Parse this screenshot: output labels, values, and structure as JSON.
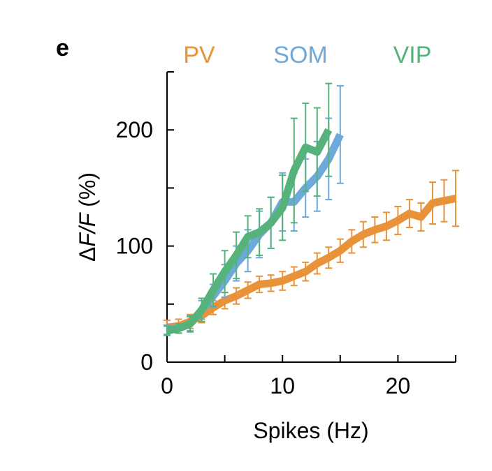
{
  "panel_label": "e",
  "chart_data": {
    "type": "line",
    "xlabel": "Spikes (Hz)",
    "ylabel_prefix": "Δ",
    "ylabel_var": "F/F",
    "ylabel_unit": " (%)",
    "xlim": [
      0,
      25
    ],
    "ylim": [
      0,
      250
    ],
    "x_ticks": [
      0,
      5,
      10,
      15,
      20,
      25
    ],
    "x_tick_labels": [
      "0",
      "",
      "10",
      "",
      "20",
      ""
    ],
    "y_ticks": [
      0,
      50,
      100,
      150,
      200,
      250
    ],
    "y_tick_labels": [
      "0",
      "",
      "100",
      "",
      "200",
      ""
    ],
    "grid": false,
    "legend_position": "top",
    "series": [
      {
        "name": "PV",
        "color": "#e8923a",
        "x": [
          0,
          1,
          2,
          3,
          4,
          5,
          6,
          7,
          8,
          9,
          10,
          11,
          12,
          13,
          14,
          15,
          16,
          17,
          18,
          19,
          20,
          21,
          22,
          23,
          24,
          25
        ],
        "y": [
          30,
          31,
          35,
          40,
          47,
          53,
          57,
          62,
          67,
          68,
          70,
          74,
          78,
          85,
          90,
          96,
          104,
          110,
          114,
          117,
          122,
          128,
          125,
          137,
          139,
          141
        ],
        "err": [
          6,
          6,
          6,
          6,
          6,
          7,
          7,
          7,
          7,
          7,
          8,
          8,
          8,
          9,
          9,
          10,
          10,
          11,
          11,
          12,
          12,
          12,
          12,
          18,
          18,
          24
        ]
      },
      {
        "name": "SOM",
        "color": "#6ea9d9",
        "x": [
          0,
          1,
          2,
          3,
          4,
          5,
          6,
          7,
          8,
          9,
          10,
          11,
          12,
          13,
          14,
          15
        ],
        "y": [
          28,
          29,
          33,
          45,
          57,
          70,
          85,
          96,
          110,
          120,
          138,
          138,
          150,
          160,
          175,
          196
        ],
        "err": [
          4,
          4,
          6,
          8,
          10,
          14,
          15,
          18,
          20,
          22,
          25,
          25,
          25,
          30,
          35,
          42
        ]
      },
      {
        "name": "VIP",
        "color": "#56b27b",
        "x": [
          0,
          1,
          2,
          3,
          4,
          5,
          6,
          7,
          8,
          9,
          10,
          11,
          12,
          13,
          14
        ],
        "y": [
          27,
          29,
          33,
          45,
          62,
          78,
          92,
          108,
          112,
          120,
          133,
          165,
          185,
          181,
          200
        ],
        "err": [
          4,
          4,
          7,
          10,
          14,
          18,
          20,
          18,
          20,
          22,
          28,
          45,
          38,
          38,
          40
        ]
      }
    ]
  }
}
